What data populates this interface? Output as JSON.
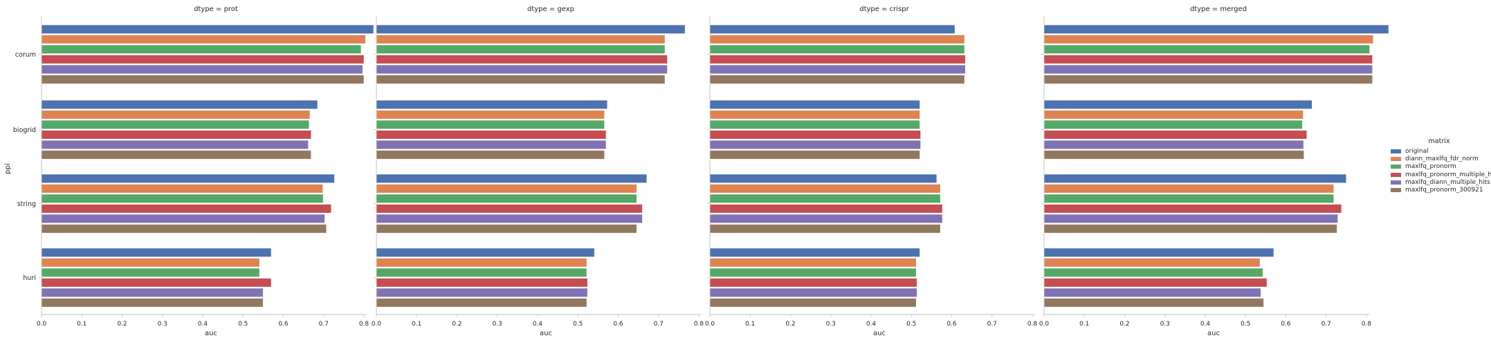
{
  "chart_data": {
    "type": "bar",
    "orientation": "horizontal",
    "facet_titles": [
      "dtype = prot",
      "dtype = gexp",
      "dtype = crispr",
      "dtype = merged"
    ],
    "categories": [
      "corum",
      "biogrid",
      "string",
      "huri"
    ],
    "xlabel": "auc",
    "ylabel": "ppi",
    "xlim": [
      0,
      0.9
    ],
    "xticks": [
      "0.0",
      "0.1",
      "0.2",
      "0.3",
      "0.4",
      "0.5",
      "0.6",
      "0.7",
      "0.8"
    ],
    "legend": {
      "title": "matrix",
      "placement": "right",
      "entries": [
        "original",
        "diann_maxlfq_fdr_norm",
        "maxlfq_pronorm",
        "maxlfq_pronorm_multiple_hits",
        "maxlfq_diann_multiple_hits",
        "maxlfq_pronorm_300921"
      ]
    },
    "colors": [
      "#4c72b0",
      "#dd8452",
      "#55a868",
      "#c44e52",
      "#8172b3",
      "#937860"
    ],
    "grid": false,
    "facets": [
      {
        "dtype": "prot",
        "series": [
          {
            "name": "original",
            "values": [
              0.824,
              0.685,
              0.727,
              0.57
            ]
          },
          {
            "name": "diann_maxlfq_fdr_norm",
            "values": [
              0.804,
              0.666,
              0.698,
              0.541
            ]
          },
          {
            "name": "maxlfq_pronorm",
            "values": [
              0.793,
              0.664,
              0.699,
              0.541
            ]
          },
          {
            "name": "maxlfq_pronorm_multiple_hits",
            "values": [
              0.8,
              0.669,
              0.719,
              0.57
            ]
          },
          {
            "name": "maxlfq_diann_multiple_hits",
            "values": [
              0.797,
              0.662,
              0.703,
              0.55
            ]
          },
          {
            "name": "maxlfq_pronorm_300921",
            "values": [
              0.8,
              0.669,
              0.707,
              0.55
            ]
          }
        ]
      },
      {
        "dtype": "gexp",
        "series": [
          {
            "name": "original",
            "values": [
              0.766,
              0.573,
              0.671,
              0.541
            ]
          },
          {
            "name": "diann_maxlfq_fdr_norm",
            "values": [
              0.716,
              0.566,
              0.646,
              0.522
            ]
          },
          {
            "name": "maxlfq_pronorm",
            "values": [
              0.716,
              0.566,
              0.646,
              0.522
            ]
          },
          {
            "name": "maxlfq_pronorm_multiple_hits",
            "values": [
              0.722,
              0.57,
              0.66,
              0.524
            ]
          },
          {
            "name": "maxlfq_diann_multiple_hits",
            "values": [
              0.722,
              0.57,
              0.66,
              0.524
            ]
          },
          {
            "name": "maxlfq_pronorm_300921",
            "values": [
              0.716,
              0.566,
              0.646,
              0.522
            ]
          }
        ]
      },
      {
        "dtype": "crispr",
        "series": [
          {
            "name": "original",
            "values": [
              0.608,
              0.521,
              0.563,
              0.521
            ]
          },
          {
            "name": "diann_maxlfq_fdr_norm",
            "values": [
              0.632,
              0.521,
              0.572,
              0.512
            ]
          },
          {
            "name": "maxlfq_pronorm",
            "values": [
              0.632,
              0.521,
              0.572,
              0.512
            ]
          },
          {
            "name": "maxlfq_pronorm_multiple_hits",
            "values": [
              0.634,
              0.523,
              0.577,
              0.514
            ]
          },
          {
            "name": "maxlfq_diann_multiple_hits",
            "values": [
              0.634,
              0.523,
              0.577,
              0.514
            ]
          },
          {
            "name": "maxlfq_pronorm_300921",
            "values": [
              0.632,
              0.521,
              0.572,
              0.512
            ]
          }
        ]
      },
      {
        "dtype": "merged",
        "series": [
          {
            "name": "original",
            "values": [
              0.855,
              0.665,
              0.75,
              0.57
            ]
          },
          {
            "name": "diann_maxlfq_fdr_norm",
            "values": [
              0.817,
              0.643,
              0.719,
              0.536
            ]
          },
          {
            "name": "maxlfq_pronorm",
            "values": [
              0.808,
              0.641,
              0.719,
              0.543
            ]
          },
          {
            "name": "maxlfq_pronorm_multiple_hits",
            "values": [
              0.815,
              0.652,
              0.738,
              0.553
            ]
          },
          {
            "name": "maxlfq_diann_multiple_hits",
            "values": [
              0.815,
              0.644,
              0.729,
              0.538
            ]
          },
          {
            "name": "maxlfq_pronorm_300921",
            "values": [
              0.815,
              0.645,
              0.727,
              0.545
            ]
          }
        ]
      }
    ]
  }
}
